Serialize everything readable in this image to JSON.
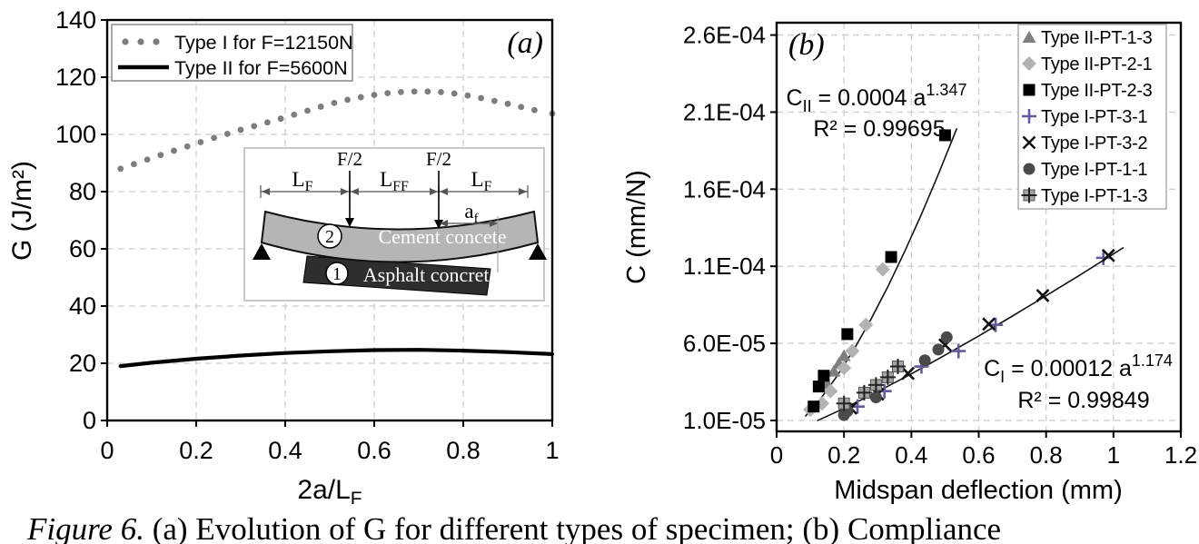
{
  "figure": {
    "caption_italic": "Figure 6.",
    "caption_rest": " (a) Evolution of G for different types of specimen; (b) Compliance"
  },
  "chart_data": [
    {
      "id": "a",
      "type": "line",
      "panel_label": "(a)",
      "xlabel": {
        "main": "2a/L",
        "sub": "F"
      },
      "ylabel": "G (J/m²)",
      "xlim": [
        0,
        1
      ],
      "ylim": [
        0,
        140
      ],
      "grid": true,
      "xticks": [
        {
          "v": 0,
          "label": "0"
        },
        {
          "v": 0.2,
          "label": "0.2"
        },
        {
          "v": 0.4,
          "label": "0.4"
        },
        {
          "v": 0.6,
          "label": "0.6"
        },
        {
          "v": 0.8,
          "label": "0.8"
        },
        {
          "v": 1,
          "label": "1"
        }
      ],
      "yticks": [
        {
          "v": 0,
          "label": "0"
        },
        {
          "v": 20,
          "label": "20"
        },
        {
          "v": 40,
          "label": "40"
        },
        {
          "v": 60,
          "label": "60"
        },
        {
          "v": 80,
          "label": "80"
        },
        {
          "v": 100,
          "label": "100"
        },
        {
          "v": 120,
          "label": "120"
        },
        {
          "v": 140,
          "label": "140"
        }
      ],
      "legend_position": "top-left",
      "series": [
        {
          "name": "Type I for F=12150N",
          "style": "dotted",
          "color": "#7d7d7d",
          "points": [
            [
              0.03,
              88
            ],
            [
              0.06,
              89.6
            ],
            [
              0.09,
              91.2
            ],
            [
              0.12,
              92.8
            ],
            [
              0.15,
              94.3
            ],
            [
              0.18,
              95.8
            ],
            [
              0.21,
              97.3
            ],
            [
              0.24,
              98.8
            ],
            [
              0.27,
              100.2
            ],
            [
              0.3,
              101.6
            ],
            [
              0.33,
              102.9
            ],
            [
              0.36,
              104.2
            ],
            [
              0.39,
              105.5
            ],
            [
              0.42,
              106.9
            ],
            [
              0.45,
              108.3
            ],
            [
              0.48,
              109.7
            ],
            [
              0.51,
              111.0
            ],
            [
              0.54,
              112.1
            ],
            [
              0.57,
              113.0
            ],
            [
              0.6,
              113.8
            ],
            [
              0.63,
              114.4
            ],
            [
              0.66,
              114.8
            ],
            [
              0.69,
              115.0
            ],
            [
              0.72,
              115.0
            ],
            [
              0.75,
              114.8
            ],
            [
              0.78,
              114.3
            ],
            [
              0.81,
              113.6
            ],
            [
              0.84,
              112.7
            ],
            [
              0.87,
              111.7
            ],
            [
              0.9,
              110.7
            ],
            [
              0.93,
              109.6
            ],
            [
              0.96,
              108.5
            ],
            [
              1.0,
              107.3
            ]
          ]
        },
        {
          "name": "Type II for F=5600N",
          "style": "solid",
          "color": "#000000",
          "points": [
            [
              0.03,
              19
            ],
            [
              0.1,
              20.2
            ],
            [
              0.2,
              21.6
            ],
            [
              0.3,
              22.7
            ],
            [
              0.4,
              23.6
            ],
            [
              0.5,
              24.2
            ],
            [
              0.6,
              24.6
            ],
            [
              0.7,
              24.7
            ],
            [
              0.8,
              24.4
            ],
            [
              0.9,
              23.9
            ],
            [
              1.0,
              23.2
            ]
          ]
        }
      ],
      "inset": {
        "dims": {
          "lf": {
            "main": "L",
            "sub": "F"
          },
          "lff": {
            "main": "L",
            "sub": "FF"
          },
          "f2": "F/2",
          "af": {
            "main": "a",
            "sub": "f"
          }
        },
        "layers": [
          {
            "num": "2",
            "label": "Cement concete"
          },
          {
            "num": "1",
            "label": "Asphalt concrete"
          }
        ]
      }
    },
    {
      "id": "b",
      "type": "scatter",
      "panel_label": "(b)",
      "xlabel": "Midspan deflection (mm)",
      "ylabel": "C (mm/N)",
      "xlim": [
        0,
        1.2
      ],
      "ylim": [
        2.9e-06,
        0.000268
      ],
      "grid": true,
      "xticks": [
        {
          "v": 0,
          "label": "0"
        },
        {
          "v": 0.2,
          "label": "0.2"
        },
        {
          "v": 0.4,
          "label": "0.4"
        },
        {
          "v": 0.6,
          "label": "0.6"
        },
        {
          "v": 0.8,
          "label": "0.8"
        },
        {
          "v": 1,
          "label": "1"
        },
        {
          "v": 1.2,
          "label": "1.2"
        }
      ],
      "yticks": [
        {
          "v": 1e-05,
          "label": "1.0E-05"
        },
        {
          "v": 6e-05,
          "label": "6.0E-05"
        },
        {
          "v": 0.00011,
          "label": "1.1E-04"
        },
        {
          "v": 0.00016,
          "label": "1.6E-04"
        },
        {
          "v": 0.00021,
          "label": "2.1E-04"
        },
        {
          "v": 0.00026,
          "label": "2.6E-04"
        }
      ],
      "legend_position": "top-right",
      "series": [
        {
          "name": "Type II-PT-1-3",
          "marker": "triangle",
          "color": "#7f7f7f",
          "points": [
            [
              0.15,
              3.4e-05
            ],
            [
              0.17,
              4.2e-05
            ],
            [
              0.185,
              4.7e-05
            ],
            [
              0.2,
              5.2e-05
            ]
          ]
        },
        {
          "name": "Type II-PT-2-1",
          "marker": "diamond",
          "color": "#b3b3b3",
          "points": [
            [
              0.1,
              1.7e-05
            ],
            [
              0.135,
              2.1e-05
            ],
            [
              0.16,
              2.9e-05
            ],
            [
              0.2,
              4.4e-05
            ],
            [
              0.225,
              5.5e-05
            ],
            [
              0.265,
              7.2e-05
            ],
            [
              0.315,
              0.000108
            ]
          ]
        },
        {
          "name": "Type II-PT-2-3",
          "marker": "square",
          "color": "#000000",
          "points": [
            [
              0.11,
              1.9e-05
            ],
            [
              0.125,
              3.2e-05
            ],
            [
              0.14,
              3.9e-05
            ],
            [
              0.21,
              6.6e-05
            ],
            [
              0.34,
              0.000116
            ],
            [
              0.5,
              0.000195
            ]
          ]
        },
        {
          "name": "Type I-PT-3-1",
          "marker": "plus",
          "color": "#655a9b",
          "points": [
            [
              0.24,
              1.9e-05
            ],
            [
              0.32,
              2.9e-05
            ],
            [
              0.43,
              4.5e-05
            ],
            [
              0.54,
              5.5e-05
            ],
            [
              0.65,
              7.2e-05
            ],
            [
              0.97,
              0.0001155
            ]
          ]
        },
        {
          "name": "Type I-PT-3-2",
          "marker": "x",
          "color": "#111111",
          "points": [
            [
              0.22,
              1.8e-05
            ],
            [
              0.3,
              2.7e-05
            ],
            [
              0.39,
              4.05e-05
            ],
            [
              0.5,
              5.9e-05
            ],
            [
              0.63,
              7.25e-05
            ],
            [
              0.79,
              9.1e-05
            ],
            [
              0.985,
              0.000117
            ]
          ]
        },
        {
          "name": "Type I-PT-1-1",
          "marker": "circle",
          "color": "#4a4a4a",
          "points": [
            [
              0.2,
              1.35e-05
            ],
            [
              0.21,
              1.6e-05
            ],
            [
              0.295,
              2.5e-05
            ],
            [
              0.44,
              4.9e-05
            ],
            [
              0.48,
              5.6e-05
            ],
            [
              0.505,
              6.4e-05
            ]
          ]
        },
        {
          "name": "Type I-PT-1-3",
          "marker": "square-plus",
          "color": "#a3a3a3",
          "points": [
            [
              0.2,
              2.1e-05
            ],
            [
              0.26,
              2.8e-05
            ],
            [
              0.295,
              3.3e-05
            ],
            [
              0.33,
              3.8e-05
            ],
            [
              0.36,
              4.5e-05
            ]
          ]
        }
      ],
      "fit_lines": [
        {
          "name": "type-ii-fit-line",
          "points": [
            [
              0.085,
              1.26e-05
            ],
            [
              0.13,
              2.39e-05
            ],
            [
              0.18,
              3.9e-05
            ],
            [
              0.23,
              5.63e-05
            ],
            [
              0.28,
              7.56e-05
            ],
            [
              0.33,
              9.67e-05
            ],
            [
              0.38,
              0.0001195
            ],
            [
              0.43,
              0.0001438
            ],
            [
              0.48,
              0.0001696
            ],
            [
              0.535,
              0.0001995
            ]
          ]
        },
        {
          "name": "type-i-fit-line",
          "points": [
            [
              0.12,
              9.8e-06
            ],
            [
              0.2,
              1.78e-05
            ],
            [
              0.3,
              2.87e-05
            ],
            [
              0.4,
              4.02e-05
            ],
            [
              0.5,
              5.23e-05
            ],
            [
              0.6,
              6.48e-05
            ],
            [
              0.7,
              7.77e-05
            ],
            [
              0.8,
              9.09e-05
            ],
            [
              0.9,
              0.0001043
            ],
            [
              1.0,
              0.000118
            ],
            [
              1.03,
              0.0001222
            ]
          ]
        }
      ],
      "annotations": [
        {
          "c": "C",
          "sub": "II",
          "eq": " = 0.0004 a",
          "exp": "1.347",
          "r2": "R² = 0.99695"
        },
        {
          "c": "C",
          "sub": "I",
          "eq": " = 0.00012 a",
          "exp": "1.174",
          "r2": "R² = 0.99849"
        }
      ]
    }
  ]
}
